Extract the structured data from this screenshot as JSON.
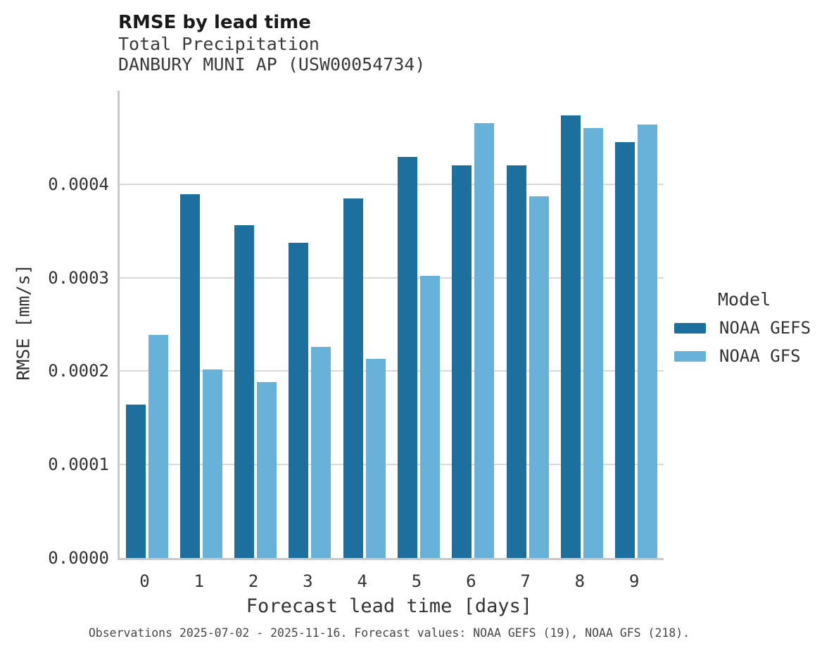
{
  "header": {
    "title": "RMSE by lead time",
    "subtitle1": "Total Precipitation",
    "subtitle2": "DANBURY MUNI AP (USW00054734)"
  },
  "caption": "Observations 2025-07-02 - 2025-11-16. Forecast values: NOAA GEFS (19), NOAA GFS (218).",
  "legend": {
    "title": "Model",
    "items": [
      {
        "label": "NOAA GEFS",
        "color": "#1d6f9e"
      },
      {
        "label": "NOAA GFS",
        "color": "#68b1d8"
      }
    ]
  },
  "colors": {
    "gefs_dark_blue": "#1d6f9e",
    "gfs_light_blue": "#68b1d8",
    "gridline_gray": "#d9d9d9",
    "axis_gray": "#c9c9c9"
  },
  "chart_data": {
    "type": "bar",
    "title": "RMSE by lead time",
    "subtitle": [
      "Total Precipitation",
      "DANBURY MUNI AP (USW00054734)"
    ],
    "xlabel": "Forecast lead time [days]",
    "ylabel": "RMSE [mm/s]",
    "categories": [
      "0",
      "1",
      "2",
      "3",
      "4",
      "5",
      "6",
      "7",
      "8",
      "9"
    ],
    "series": [
      {
        "name": "NOAA GEFS",
        "color": "#1d6f9e",
        "values": [
          0.000164,
          0.000389,
          0.000356,
          0.000337,
          0.000385,
          0.000429,
          0.00042,
          0.00042,
          0.000474,
          0.000445
        ]
      },
      {
        "name": "NOAA GFS",
        "color": "#68b1d8",
        "values": [
          0.000239,
          0.000202,
          0.000188,
          0.000226,
          0.000213,
          0.000302,
          0.000465,
          0.000387,
          0.00046,
          0.000464
        ]
      }
    ],
    "ylim": [
      0,
      0.0005
    ],
    "yticks": [
      0.0,
      0.0001,
      0.0002,
      0.0003,
      0.0004
    ],
    "ytick_labels": [
      "0.0000",
      "0.0001",
      "0.0002",
      "0.0003",
      "0.0004"
    ],
    "grid": true,
    "legend_position": "right",
    "legend_title": "Model"
  }
}
